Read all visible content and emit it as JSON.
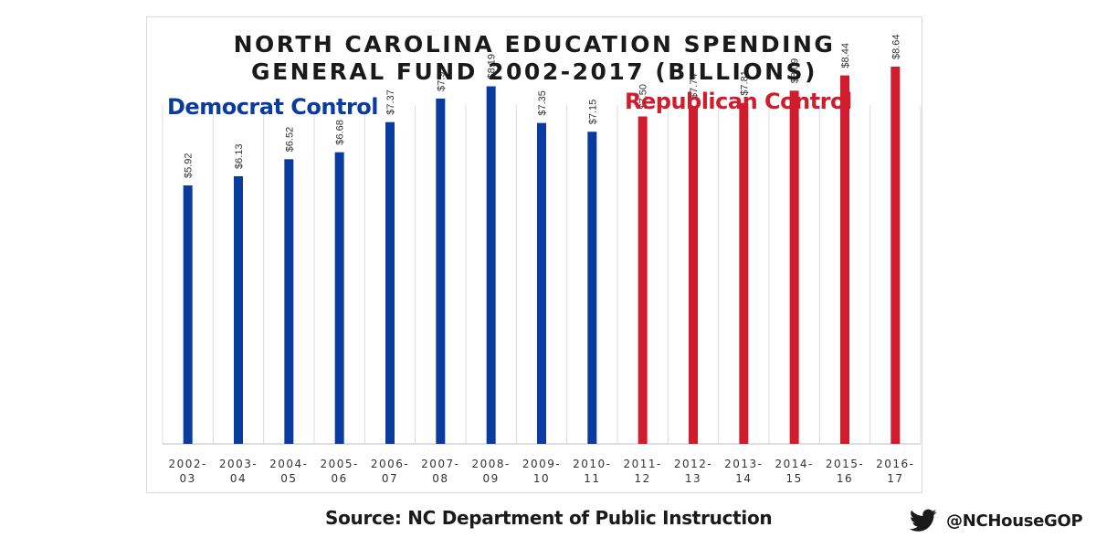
{
  "title_line1": "NORTH CAROLINA EDUCATION SPENDING",
  "title_line2": "GENERAL FUND 2002-2017 (BILLIONS)",
  "democrat_label": "Democrat Control",
  "republican_label": "Republican Control",
  "source": "Source: NC Department of Public Instruction",
  "handle": "@NCHouseGOP",
  "icon": "twitter-bird-icon",
  "colors": {
    "democrat": "#0a3ca0",
    "republican": "#d01c2c",
    "gridline": "#dddddd",
    "text": "#1a1a1a"
  },
  "chart_data": {
    "type": "bar",
    "title": "NORTH CAROLINA EDUCATION SPENDING GENERAL FUND 2002-2017 (BILLIONS)",
    "xlabel": "",
    "ylabel": "",
    "ylim": [
      0,
      9.6
    ],
    "grid": "vertical",
    "categories": [
      [
        "2002-",
        "03"
      ],
      [
        "2003-",
        "04"
      ],
      [
        "2004-",
        "05"
      ],
      [
        "2005-",
        "06"
      ],
      [
        "2006-",
        "07"
      ],
      [
        "2007-",
        "08"
      ],
      [
        "2008-",
        "09"
      ],
      [
        "2009-",
        "10"
      ],
      [
        "2010-",
        "11"
      ],
      [
        "2011-",
        "12"
      ],
      [
        "2012-",
        "13"
      ],
      [
        "2013-",
        "14"
      ],
      [
        "2014-",
        "15"
      ],
      [
        "2015-",
        "16"
      ],
      [
        "2016-",
        "17"
      ]
    ],
    "values": [
      5.92,
      6.13,
      6.52,
      6.68,
      7.37,
      7.91,
      8.19,
      7.35,
      7.15,
      7.5,
      7.74,
      7.81,
      8.09,
      8.44,
      8.64
    ],
    "labels": [
      "$5.92",
      "$6.13",
      "$6.52",
      "$6.68",
      "$7.37",
      "$7.91",
      "$8.19",
      "$7.35",
      "$7.15",
      "$7.50",
      "$7.74",
      "$7.81",
      "$8.09",
      "$8.44",
      "$8.64"
    ],
    "party": [
      "democrat",
      "democrat",
      "democrat",
      "democrat",
      "democrat",
      "democrat",
      "democrat",
      "democrat",
      "democrat",
      "republican",
      "republican",
      "republican",
      "republican",
      "republican",
      "republican"
    ]
  }
}
